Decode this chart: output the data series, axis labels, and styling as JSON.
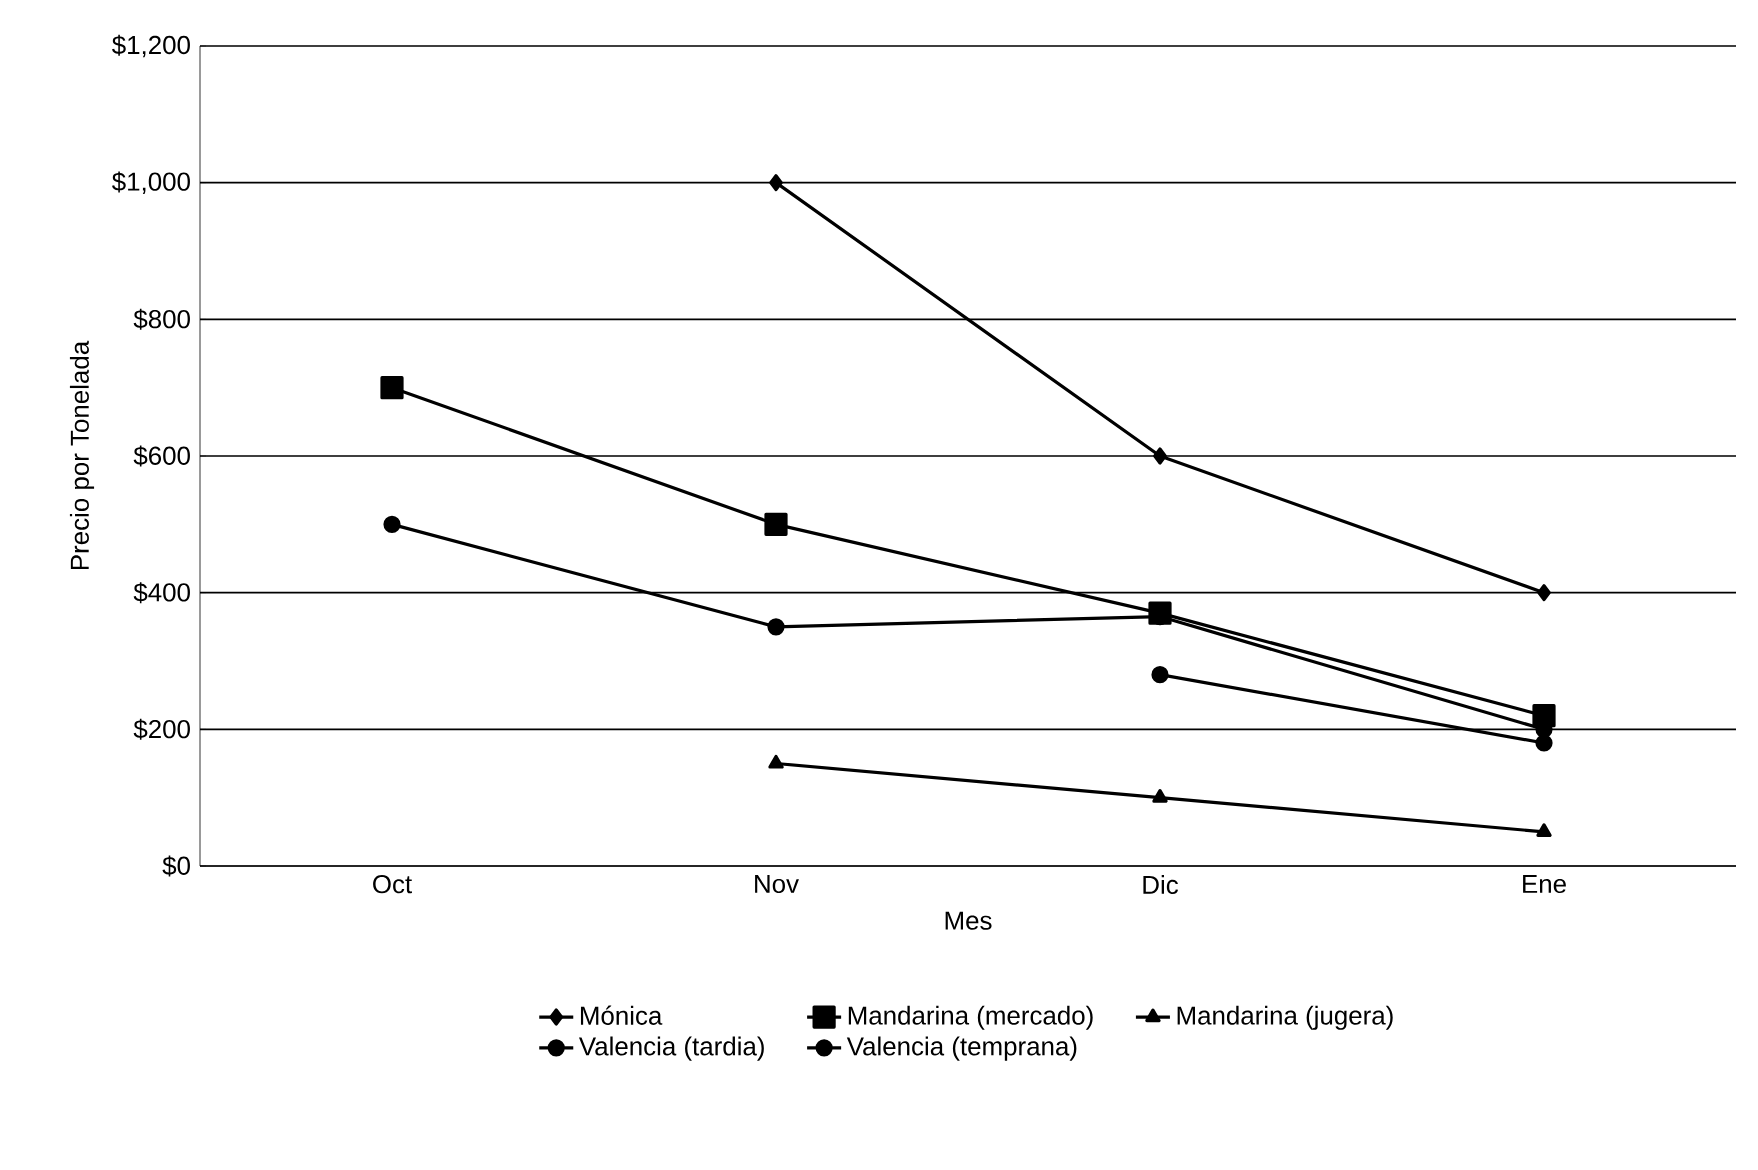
{
  "chart_data": {
    "type": "line",
    "xlabel": "Mes",
    "ylabel": "Precio por Tonelada",
    "categories": [
      "Oct",
      "Nov",
      "Dic",
      "Ene"
    ],
    "series": [
      {
        "name": "Mónica",
        "color": "#000000",
        "marker": "diamond",
        "values": [
          null,
          1000,
          600,
          400
        ]
      },
      {
        "name": "Mandarina (mercado)",
        "color": "#000000",
        "marker": "square",
        "values": [
          700,
          500,
          370,
          220
        ]
      },
      {
        "name": "Mandarina (jugera)",
        "color": "#000000",
        "marker": "triangle",
        "values": [
          null,
          150,
          100,
          50
        ]
      },
      {
        "name": "Valencia (tardia)",
        "color": "#000000",
        "marker": "circle",
        "values": [
          null,
          null,
          280,
          180
        ]
      },
      {
        "name": "Valencia (temprana)",
        "color": "#000000",
        "marker": "circle",
        "values": [
          500,
          350,
          365,
          200
        ]
      }
    ],
    "ylim": [
      0,
      1200
    ],
    "yticks": [
      {
        "value": 0,
        "label": "$0"
      },
      {
        "value": 200,
        "label": "$200"
      },
      {
        "value": 400,
        "label": "$400"
      },
      {
        "value": 600,
        "label": "$600"
      },
      {
        "value": 800,
        "label": "$800"
      },
      {
        "value": 1000,
        "label": "$1,000"
      },
      {
        "value": 1200,
        "label": "$1,200"
      }
    ],
    "grid": "y",
    "legend": "bottom",
    "line_style": "solid"
  }
}
